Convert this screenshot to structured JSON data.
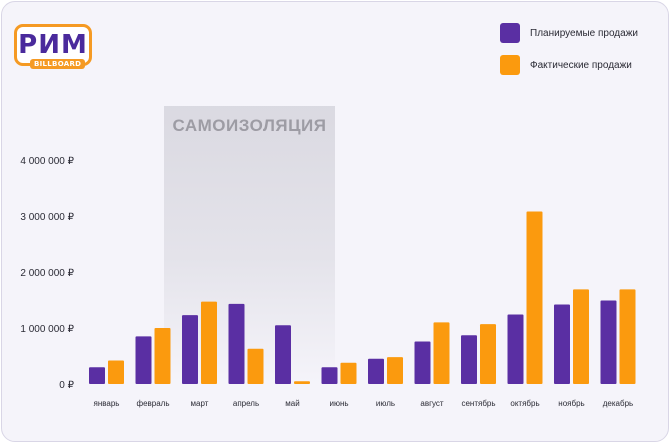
{
  "logo": {
    "word": "РИМ",
    "tag": "BILLBOARD"
  },
  "colors": {
    "planned": "#5a2fa3",
    "actual": "#fb9a0e",
    "shade": "#d9d8e0",
    "band_label": "#9d9ca4"
  },
  "chart_data": {
    "type": "bar",
    "categories": [
      "январь",
      "февраль",
      "март",
      "апрель",
      "май",
      "июнь",
      "июль",
      "август",
      "сентябрь",
      "октябрь",
      "ноябрь",
      "декабрь"
    ],
    "series": [
      {
        "name": "Планируемые продажи",
        "values": [
          300000,
          850000,
          1230000,
          1430000,
          1050000,
          300000,
          450000,
          760000,
          870000,
          1240000,
          1420000,
          1490000
        ]
      },
      {
        "name": "Фактические продажи",
        "values": [
          420000,
          1000000,
          1470000,
          630000,
          50000,
          380000,
          480000,
          1100000,
          1070000,
          3080000,
          1690000,
          1690000
        ]
      }
    ],
    "ylim": [
      0,
      4000000
    ],
    "yticks": [
      0,
      1000000,
      2000000,
      3000000,
      4000000
    ],
    "ytick_labels": [
      "0 ₽",
      "1 000 000 ₽",
      "2 000 000 ₽",
      "3 000 000 ₽",
      "4 000 000 ₽"
    ],
    "annotation": {
      "label": "САМОИЗОЛЯЦИЯ",
      "from": "март",
      "to": "июнь"
    },
    "legend": "top-right",
    "grid": false
  }
}
